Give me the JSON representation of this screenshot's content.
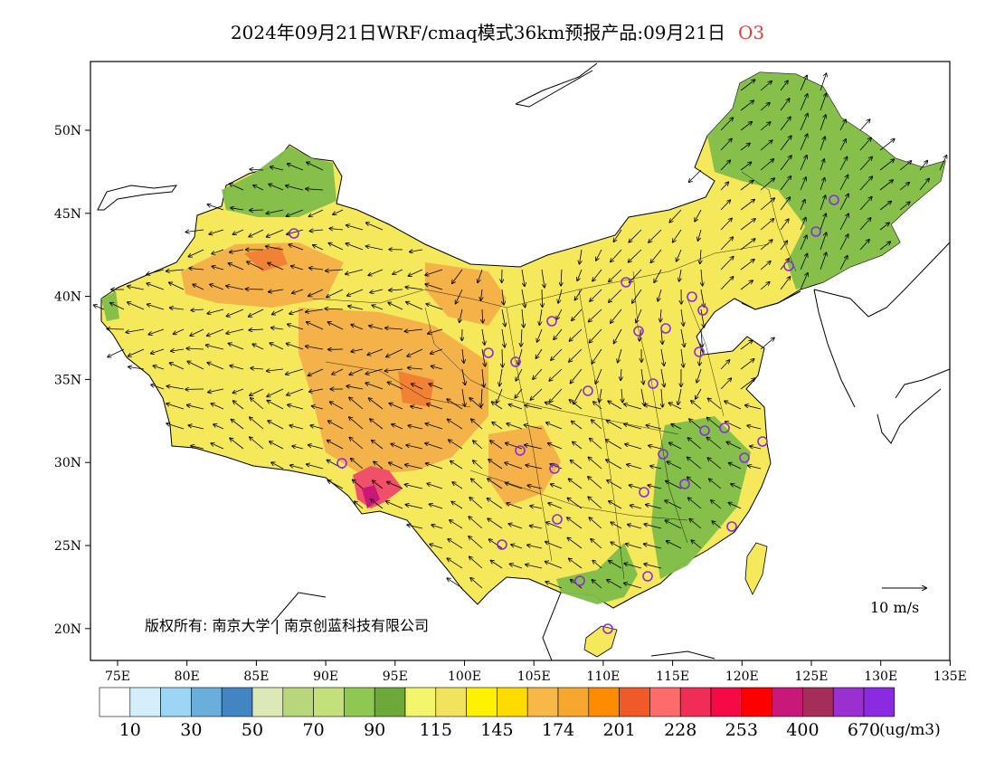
{
  "title": {
    "text": "2024年09月21日WRF/cmaq模式36km预报产品:09月21日",
    "species": "O3",
    "species_color": "#e83c3c"
  },
  "map": {
    "lon_labels": [
      "75E",
      "80E",
      "85E",
      "90E",
      "95E",
      "100E",
      "105E",
      "110E",
      "115E",
      "120E",
      "125E",
      "130E",
      "135E"
    ],
    "lat_labels": [
      "50N",
      "45N",
      "40N",
      "35N",
      "30N",
      "25N",
      "20N"
    ],
    "copyright": "版权所有: 南京大学 | 南京创蓝科技有限公司",
    "vector_ref_label": "10 m/s",
    "background": "#ffffff",
    "china_base_color": "#f5e85a",
    "high_o3_color": "#f4ad48",
    "low_o3_color": "#7fbd4a",
    "station_marker_color": "#8a2be2"
  },
  "legend": {
    "unit": "(ug/m3)",
    "labels": [
      "10",
      "30",
      "50",
      "70",
      "90",
      "115",
      "145",
      "174",
      "201",
      "228",
      "253",
      "400",
      "670"
    ],
    "colors": [
      "#ffffff",
      "#d4eefc",
      "#9dd6f5",
      "#6aaedb",
      "#4285c2",
      "#dde8b7",
      "#b8d67a",
      "#c3e07a",
      "#8ec850",
      "#6ca83a",
      "#f3f56a",
      "#f2e35c",
      "#fff200",
      "#ffdb00",
      "#f7b848",
      "#f7a730",
      "#ff8c00",
      "#f05a28",
      "#ff6b6b",
      "#f02d55",
      "#f50a46",
      "#ff0000",
      "#c8197a",
      "#a52d5a",
      "#9b30d0",
      "#8a2be2"
    ]
  }
}
